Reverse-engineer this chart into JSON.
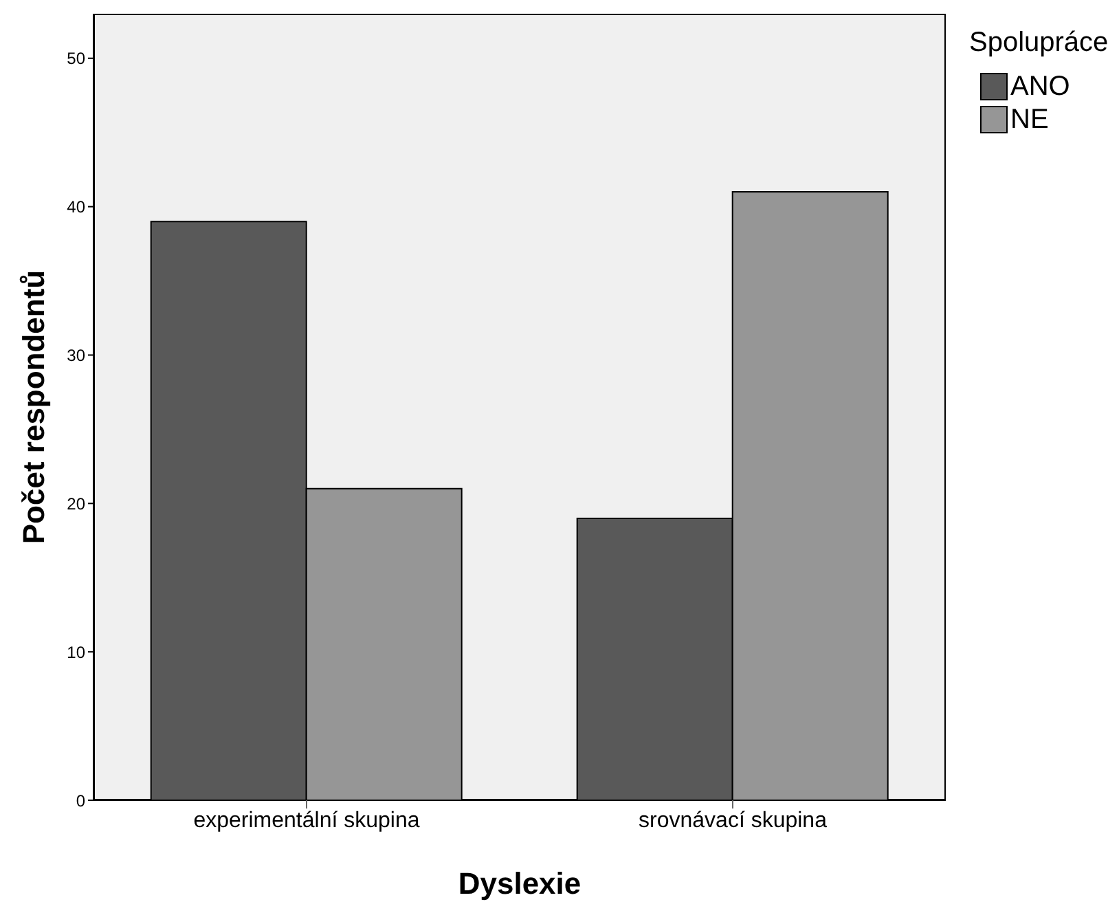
{
  "chart_data": {
    "type": "bar",
    "xlabel": "Dyslexie",
    "ylabel": "Počet respondentů",
    "legend_title": "Spolupráce",
    "categories": [
      "experimentální skupina",
      "srovnávací skupina"
    ],
    "series": [
      {
        "name": "ANO",
        "color": "#595959",
        "values": [
          39,
          19
        ]
      },
      {
        "name": "NE",
        "color": "#969696",
        "values": [
          21,
          41
        ]
      }
    ],
    "ylim": [
      0,
      53
    ],
    "yticks": [
      0,
      10,
      20,
      30,
      40,
      50
    ],
    "legend": "top right"
  }
}
